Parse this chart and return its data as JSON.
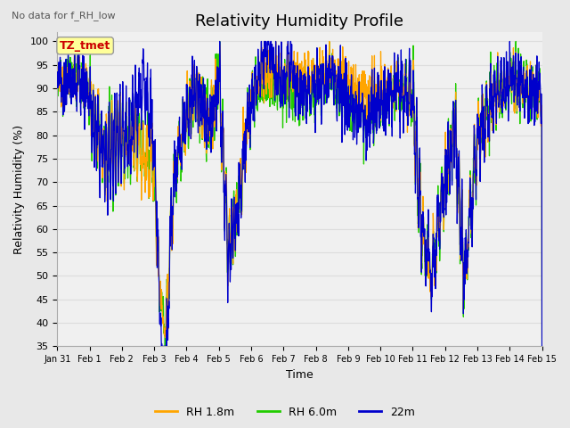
{
  "title": "Relativity Humidity Profile",
  "subtitle": "No data for f_RH_low",
  "xlabel": "Time",
  "ylabel": "Relativity Humidity (%)",
  "ylim": [
    35,
    102
  ],
  "yticks": [
    35,
    40,
    45,
    50,
    55,
    60,
    65,
    70,
    75,
    80,
    85,
    90,
    95,
    100
  ],
  "legend_labels": [
    "RH 1.8m",
    "RH 6.0m",
    "22m"
  ],
  "legend_colors": [
    "#FFA500",
    "#22CC00",
    "#0000CC"
  ],
  "tz_label": "TZ_tmet",
  "tz_color": "#CC0000",
  "tz_bg": "#FFFF99",
  "grid_color": "#DDDDDD",
  "bg_color": "#E8E8E8",
  "plot_bg": "#F0F0F0",
  "seed": 12345
}
